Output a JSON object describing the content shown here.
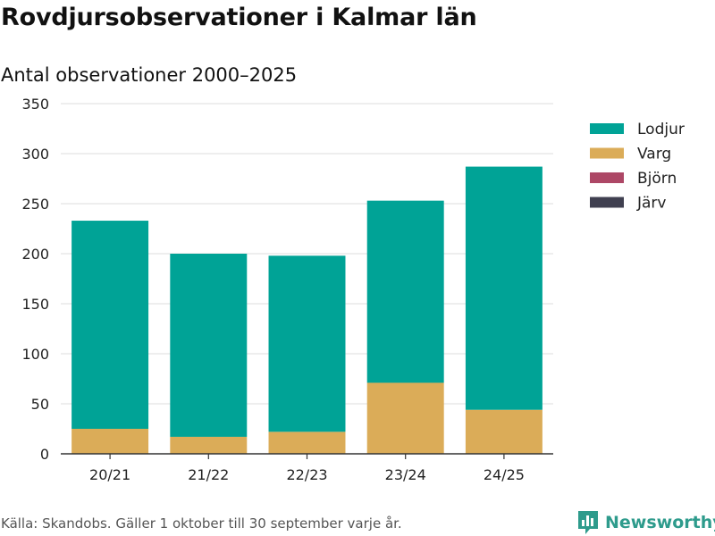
{
  "chart_data": {
    "type": "bar",
    "stacked": true,
    "title": "Rovdjursobservationer i Kalmar län",
    "subtitle": "Antal observationer 2000–2025",
    "categories": [
      "20/21",
      "21/22",
      "22/23",
      "23/24",
      "24/25"
    ],
    "series": [
      {
        "name": "Lodjur",
        "color": "#00a396",
        "values": [
          208,
          183,
          176,
          182,
          243
        ]
      },
      {
        "name": "Varg",
        "color": "#dbac58",
        "values": [
          25,
          17,
          22,
          71,
          44
        ]
      },
      {
        "name": "Björn",
        "color": "#ad4766",
        "values": [
          0,
          0,
          0,
          0,
          0
        ]
      },
      {
        "name": "Järv",
        "color": "#404050",
        "values": [
          0,
          0,
          0,
          0,
          0
        ]
      }
    ],
    "stack_order": [
      "Varg",
      "Lodjur",
      "Björn",
      "Järv"
    ],
    "ylim": [
      0,
      350
    ],
    "yticks": [
      0,
      50,
      100,
      150,
      200,
      250,
      300,
      350
    ],
    "grid": true,
    "legend_position": "right",
    "xlabel": "",
    "ylabel": ""
  },
  "footer": {
    "source": "Källa: Skandobs. Gäller 1 oktober till 30 september varje år.",
    "brand": "Newsworthy",
    "brand_color": "#2e9b8c",
    "brand_icon": "bar-chart-icon"
  }
}
